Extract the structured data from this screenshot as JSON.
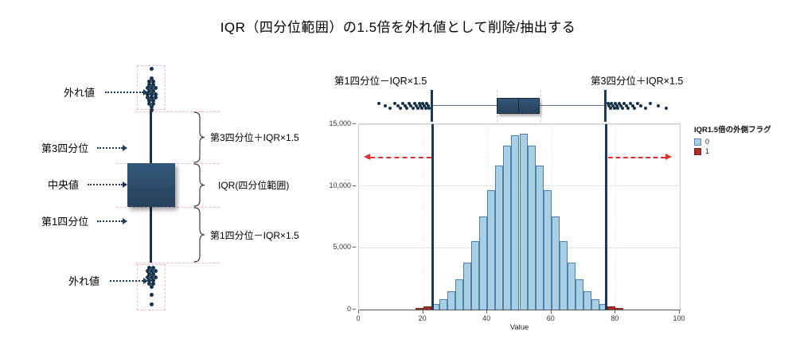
{
  "page": {
    "title": "IQR（四分位範囲）の1.5倍を外れ値として削除/抽出する"
  },
  "left_diagram": {
    "label_outlier_top": "外れ値",
    "label_q3": "第3四分位",
    "label_median": "中央値",
    "label_q1": "第1四分位",
    "label_outlier_bottom": "外れ値",
    "annotation_upper": "第3四分位＋IQR×1.5",
    "annotation_iqr": "IQR(四分位範囲)",
    "annotation_lower": "第1四分位－IQR×1.5",
    "box_color": "#2e4f6b",
    "guide_color": "#f2b9cf"
  },
  "right_chart": {
    "boundary_label_left": "第1四分位－IQR×1.5",
    "boundary_label_right": "第3四分位＋IQR×1.5",
    "legend": {
      "title": "IQR1.5倍の外側フラグ",
      "items": [
        {
          "label": "0",
          "color": "#a9cfe5",
          "border": "#5b8db8"
        },
        {
          "label": "1",
          "color": "#a93226",
          "border": "#7b241c"
        }
      ]
    }
  },
  "chart_data": {
    "type": "bar",
    "subtype": "histogram-with-marginal-boxplot",
    "title": "",
    "xlabel": "Value",
    "ylabel": "",
    "xlim": [
      0,
      100
    ],
    "ylim": [
      0,
      15000
    ],
    "x_ticks": [
      0,
      20,
      40,
      60,
      80,
      100
    ],
    "y_ticks": [
      0,
      5000,
      10000,
      15000
    ],
    "y_tick_labels": [
      "0",
      "5,000",
      "10,000",
      "15,000"
    ],
    "grid": "on",
    "legend_position": "right-top",
    "bin_width": 2.5,
    "bins": [
      {
        "x": 18.75,
        "count": 110,
        "flag": 1
      },
      {
        "x": 21.25,
        "count": 230,
        "flag": 1
      },
      {
        "x": 23.75,
        "count": 450,
        "flag": 0
      },
      {
        "x": 26.25,
        "count": 840,
        "flag": 0
      },
      {
        "x": 28.75,
        "count": 1480,
        "flag": 0
      },
      {
        "x": 31.25,
        "count": 2450,
        "flag": 0
      },
      {
        "x": 33.75,
        "count": 3790,
        "flag": 0
      },
      {
        "x": 36.25,
        "count": 5520,
        "flag": 0
      },
      {
        "x": 38.75,
        "count": 7540,
        "flag": 0
      },
      {
        "x": 41.25,
        "count": 9680,
        "flag": 0
      },
      {
        "x": 43.75,
        "count": 11680,
        "flag": 0
      },
      {
        "x": 46.25,
        "count": 13240,
        "flag": 0
      },
      {
        "x": 48.75,
        "count": 14090,
        "flag": 0
      },
      {
        "x": 51.25,
        "count": 14200,
        "flag": 0
      },
      {
        "x": 53.75,
        "count": 13240,
        "flag": 0
      },
      {
        "x": 56.25,
        "count": 11680,
        "flag": 0
      },
      {
        "x": 58.75,
        "count": 9680,
        "flag": 0
      },
      {
        "x": 61.25,
        "count": 7540,
        "flag": 0
      },
      {
        "x": 63.75,
        "count": 5520,
        "flag": 0
      },
      {
        "x": 66.25,
        "count": 3790,
        "flag": 0
      },
      {
        "x": 68.75,
        "count": 2450,
        "flag": 0
      },
      {
        "x": 71.25,
        "count": 1480,
        "flag": 0
      },
      {
        "x": 73.75,
        "count": 840,
        "flag": 0
      },
      {
        "x": 76.25,
        "count": 450,
        "flag": 0
      },
      {
        "x": 78.75,
        "count": 230,
        "flag": 1
      },
      {
        "x": 81.25,
        "count": 110,
        "flag": 1
      }
    ],
    "boundaries": {
      "lower": 23,
      "upper": 77
    },
    "boundary_color": "#1b3a5c",
    "arrow": {
      "y_value": 12300,
      "left_end": 2,
      "right_end": 97,
      "color": "#e03131"
    },
    "boxplot": {
      "whisker_low": 23,
      "q1": 43.3,
      "median": 50,
      "q3": 56.7,
      "whisker_high": 77,
      "outliers_left": [
        6.5,
        8.5,
        10,
        11.5,
        12.5,
        13.2,
        14,
        14.6,
        15.2,
        15.8,
        16.4,
        17,
        17.5,
        18,
        18.5,
        19,
        19.4,
        19.8,
        20.2,
        20.6,
        21,
        21.4,
        21.8,
        22.2
      ],
      "outliers_right": [
        77.8,
        78.2,
        78.6,
        79,
        79.4,
        79.8,
        80.2,
        80.6,
        81,
        81.5,
        82,
        82.5,
        83,
        83.6,
        84.2,
        84.8,
        85.5,
        86.2,
        87,
        88,
        89.5,
        91,
        93.5,
        96
      ]
    },
    "bar_colors": {
      "flag0": "#a9cfe5",
      "flag0_border": "#4d82a8",
      "flag1": "#a93226",
      "flag1_border": "#7b241c"
    }
  }
}
